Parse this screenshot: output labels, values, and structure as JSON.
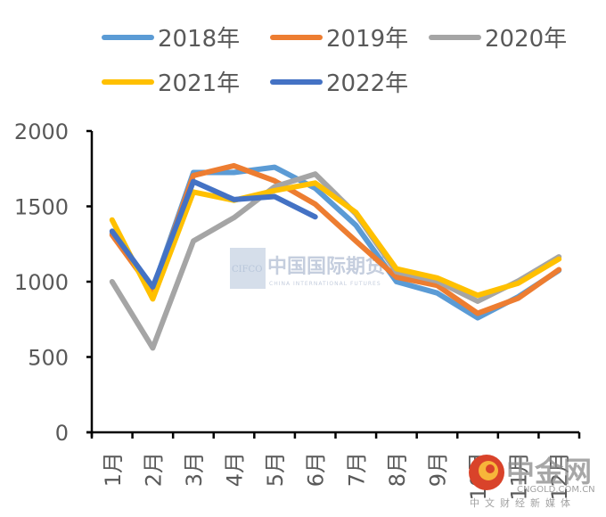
{
  "chart_data": {
    "type": "line",
    "title": "",
    "xlabel": "",
    "ylabel": "",
    "categories": [
      "1月",
      "2月",
      "3月",
      "4月",
      "5月",
      "6月",
      "7月",
      "8月",
      "9月",
      "10月",
      "11月",
      "12月"
    ],
    "ylim": [
      0,
      2000
    ],
    "yticks": [
      0,
      500,
      1000,
      1500,
      2000
    ],
    "grid": false,
    "legend_position": "top",
    "series": [
      {
        "name": "2018年",
        "color": "#5B9BD5",
        "values": [
          1320,
          950,
          1725,
          1725,
          1760,
          1620,
          1375,
          1000,
          925,
          760,
          900,
          1075
        ]
      },
      {
        "name": "2019年",
        "color": "#ED7D31",
        "values": [
          1310,
          940,
          1705,
          1770,
          1670,
          1515,
          1270,
          1030,
          975,
          790,
          890,
          1080
        ]
      },
      {
        "name": "2020年",
        "color": "#A5A5A5",
        "values": [
          1000,
          560,
          1270,
          1425,
          1630,
          1715,
          1450,
          1065,
          1005,
          870,
          1005,
          1165
        ]
      },
      {
        "name": "2021年",
        "color": "#FFC000",
        "values": [
          1410,
          885,
          1595,
          1540,
          1605,
          1655,
          1460,
          1085,
          1025,
          910,
          990,
          1150
        ]
      },
      {
        "name": "2022年",
        "color": "#4472C4",
        "values": [
          1335,
          965,
          1665,
          1545,
          1565,
          1430,
          null,
          null,
          null,
          null,
          null,
          null
        ]
      }
    ]
  },
  "watermarks": {
    "center_logo_abbr": "CIFCO",
    "center_logo_cn": "中国国际期货",
    "center_logo_en": "CHINA INTERNATIONAL FUTURES",
    "corner_logo_cn": "中金网",
    "corner_logo_url": "CNGOLD.COM.CN",
    "corner_logo_sub": "中文财经新媒体"
  }
}
